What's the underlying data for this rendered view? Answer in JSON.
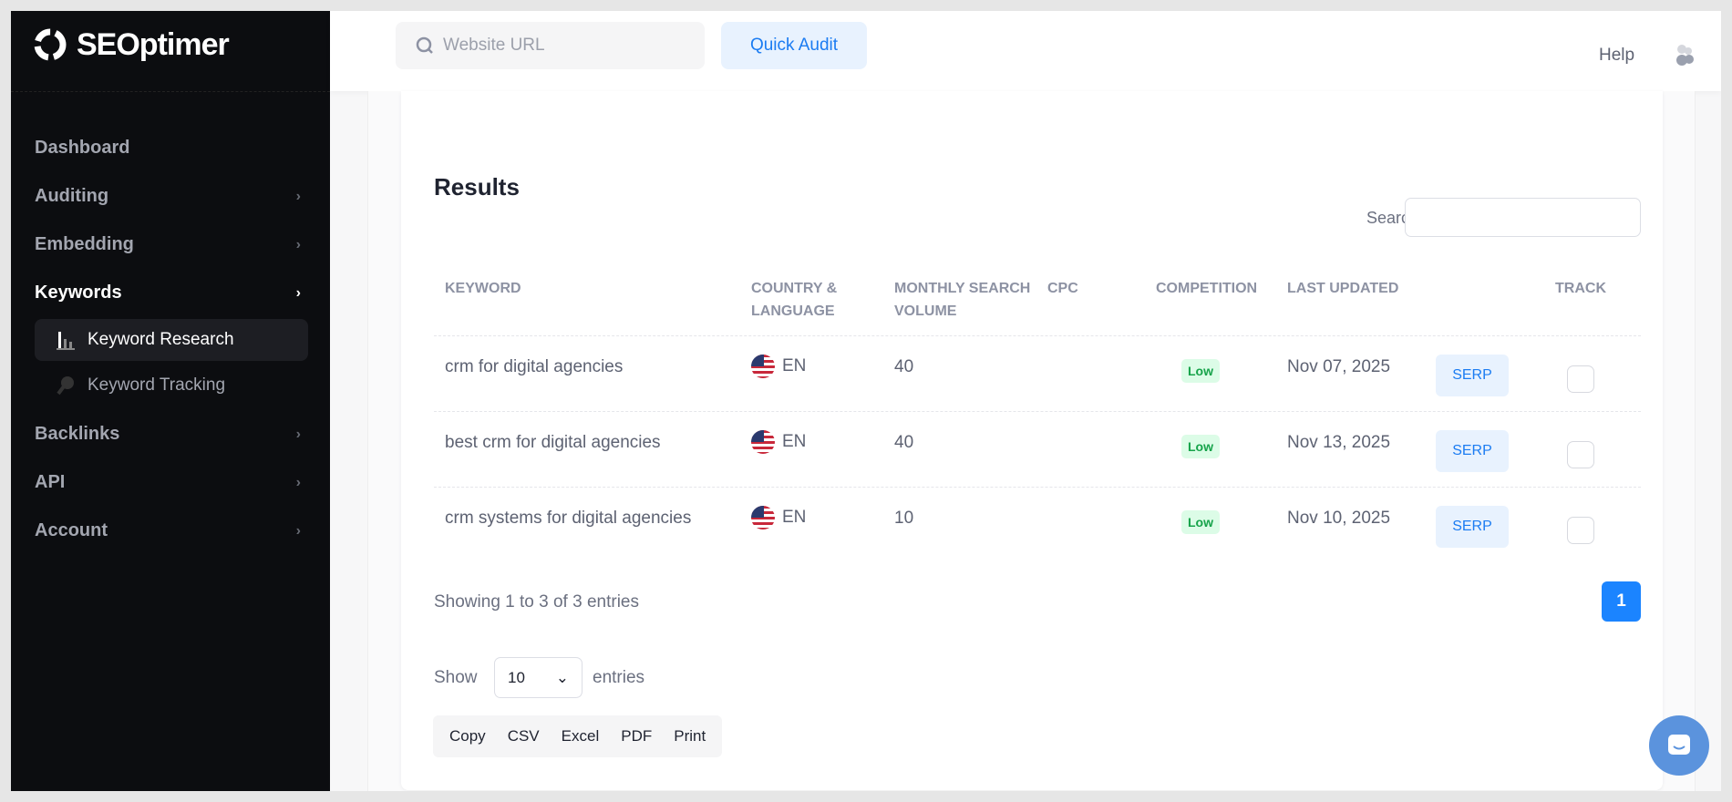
{
  "brand": {
    "name": "SEOptimer"
  },
  "sidebar": {
    "items": [
      {
        "label": "Dashboard",
        "chevron": false
      },
      {
        "label": "Auditing",
        "chevron": true
      },
      {
        "label": "Embedding",
        "chevron": true
      },
      {
        "label": "Keywords",
        "chevron": true,
        "active": true
      }
    ],
    "sub_items": [
      {
        "label": "Keyword Research",
        "icon": "bar-chart-icon",
        "active": true
      },
      {
        "label": "Keyword Tracking",
        "icon": "pin-icon"
      }
    ],
    "items_after": [
      {
        "label": "Backlinks"
      },
      {
        "label": "API"
      },
      {
        "label": "Account"
      }
    ]
  },
  "header": {
    "url_placeholder": "Website URL",
    "quick_audit": "Quick Audit",
    "help": "Help"
  },
  "results": {
    "title": "Results",
    "search_label": "Search:",
    "columns": [
      "KEYWORD",
      "COUNTRY & LANGUAGE",
      "MONTHLY SEARCH VOLUME",
      "CPC",
      "COMPETITION",
      "LAST UPDATED",
      "",
      "TRACK"
    ],
    "rows": [
      {
        "keyword": "crm for digital agencies",
        "lang": "EN",
        "volume": "40",
        "cpc": "",
        "competition": "Low",
        "updated": "Nov 07, 2025",
        "serp": "SERP"
      },
      {
        "keyword": "best crm for digital agencies",
        "lang": "EN",
        "volume": "40",
        "cpc": "",
        "competition": "Low",
        "updated": "Nov 13, 2025",
        "serp": "SERP"
      },
      {
        "keyword": "crm systems for digital agencies",
        "lang": "EN",
        "volume": "10",
        "cpc": "",
        "competition": "Low",
        "updated": "Nov 10, 2025",
        "serp": "SERP"
      }
    ],
    "showing": "Showing 1 to 3 of 3 entries",
    "page": "1",
    "show": "Show",
    "page_size": "10",
    "entries": "entries",
    "export_buttons": [
      "Copy",
      "CSV",
      "Excel",
      "PDF",
      "Print"
    ]
  },
  "colors": {
    "accent": "#1b84ff",
    "sidebar": "#0c0d10",
    "low_badge": "#16a34a"
  }
}
